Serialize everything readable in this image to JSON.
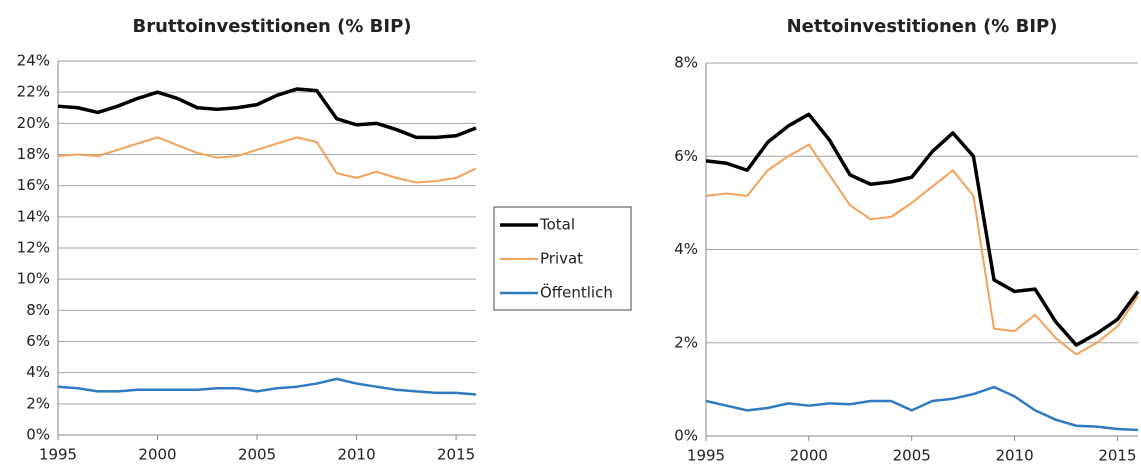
{
  "chart_data": [
    {
      "type": "line",
      "title": "Bruttoinvestitionen (% BIP)",
      "x": [
        1995,
        1996,
        1997,
        1998,
        1999,
        2000,
        2001,
        2002,
        2003,
        2004,
        2005,
        2006,
        2007,
        2008,
        2009,
        2010,
        2011,
        2012,
        2013,
        2014,
        2015,
        2016
      ],
      "xlim": [
        1995,
        2016
      ],
      "xticks": [
        1995,
        2000,
        2005,
        2010,
        2015
      ],
      "ylim": [
        0,
        24
      ],
      "yticks": [
        {
          "value": 0,
          "label": "0%"
        },
        {
          "value": 2,
          "label": "2%"
        },
        {
          "value": 4,
          "label": "4%"
        },
        {
          "value": 6,
          "label": "6%"
        },
        {
          "value": 8,
          "label": "8%"
        },
        {
          "value": 10,
          "label": "10%"
        },
        {
          "value": 12,
          "label": "12%"
        },
        {
          "value": 14,
          "label": "14%"
        },
        {
          "value": 16,
          "label": "16%"
        },
        {
          "value": 18,
          "label": "18%"
        },
        {
          "value": 20,
          "label": "20%"
        },
        {
          "value": 22,
          "label": "22%"
        },
        {
          "value": 24,
          "label": "24%"
        }
      ],
      "grid": true,
      "series": [
        {
          "name": "Total",
          "color": "#000000",
          "width": 3.5,
          "values": [
            21.1,
            21.0,
            20.7,
            21.1,
            21.6,
            22.0,
            21.6,
            21.0,
            20.9,
            21.0,
            21.2,
            21.8,
            22.2,
            22.1,
            20.3,
            19.9,
            20.0,
            19.6,
            19.1,
            19.1,
            19.2,
            19.7
          ]
        },
        {
          "name": "Privat",
          "color": "#f4a15a",
          "width": 2,
          "values": [
            17.9,
            18.0,
            17.9,
            18.3,
            18.7,
            19.1,
            18.6,
            18.1,
            17.8,
            17.9,
            18.3,
            18.7,
            19.1,
            18.8,
            16.8,
            16.5,
            16.9,
            16.5,
            16.2,
            16.3,
            16.5,
            17.1
          ]
        },
        {
          "name": "Öffentlich",
          "color": "#2f7ac0",
          "width": 2.5,
          "values": [
            3.1,
            3.0,
            2.8,
            2.8,
            2.9,
            2.9,
            2.9,
            2.9,
            3.0,
            3.0,
            2.8,
            3.0,
            3.1,
            3.3,
            3.6,
            3.3,
            3.1,
            2.9,
            2.8,
            2.7,
            2.7,
            2.6
          ]
        }
      ]
    },
    {
      "type": "line",
      "title": "Nettoinvestitionen (% BIP)",
      "x": [
        1995,
        1996,
        1997,
        1998,
        1999,
        2000,
        2001,
        2002,
        2003,
        2004,
        2005,
        2006,
        2007,
        2008,
        2009,
        2010,
        2011,
        2012,
        2013,
        2014,
        2015,
        2016
      ],
      "xlim": [
        1995,
        2016
      ],
      "xticks": [
        1995,
        2000,
        2005,
        2010,
        2015
      ],
      "ylim": [
        0,
        8
      ],
      "yticks": [
        {
          "value": 0,
          "label": "0%"
        },
        {
          "value": 2,
          "label": "2%"
        },
        {
          "value": 4,
          "label": "4%"
        },
        {
          "value": 6,
          "label": "6%"
        },
        {
          "value": 8,
          "label": "8%"
        }
      ],
      "grid": true,
      "series": [
        {
          "name": "Total",
          "color": "#000000",
          "width": 3.5,
          "values": [
            5.9,
            5.85,
            5.7,
            6.3,
            6.65,
            6.9,
            6.35,
            5.6,
            5.4,
            5.45,
            5.55,
            6.1,
            6.5,
            6.0,
            3.35,
            3.1,
            3.15,
            2.45,
            1.95,
            2.2,
            2.5,
            3.1
          ]
        },
        {
          "name": "Privat",
          "color": "#f4a15a",
          "width": 2,
          "values": [
            5.15,
            5.2,
            5.15,
            5.7,
            6.0,
            6.25,
            5.6,
            4.95,
            4.65,
            4.7,
            5.0,
            5.35,
            5.7,
            5.15,
            2.3,
            2.25,
            2.6,
            2.1,
            1.75,
            2.0,
            2.35,
            3.0
          ]
        },
        {
          "name": "Öffentlich",
          "color": "#2f7ac0",
          "width": 2.5,
          "values": [
            0.75,
            0.65,
            0.55,
            0.6,
            0.7,
            0.65,
            0.7,
            0.68,
            0.75,
            0.75,
            0.55,
            0.75,
            0.8,
            0.9,
            1.05,
            0.85,
            0.55,
            0.35,
            0.22,
            0.2,
            0.15,
            0.13
          ]
        }
      ]
    }
  ]
}
